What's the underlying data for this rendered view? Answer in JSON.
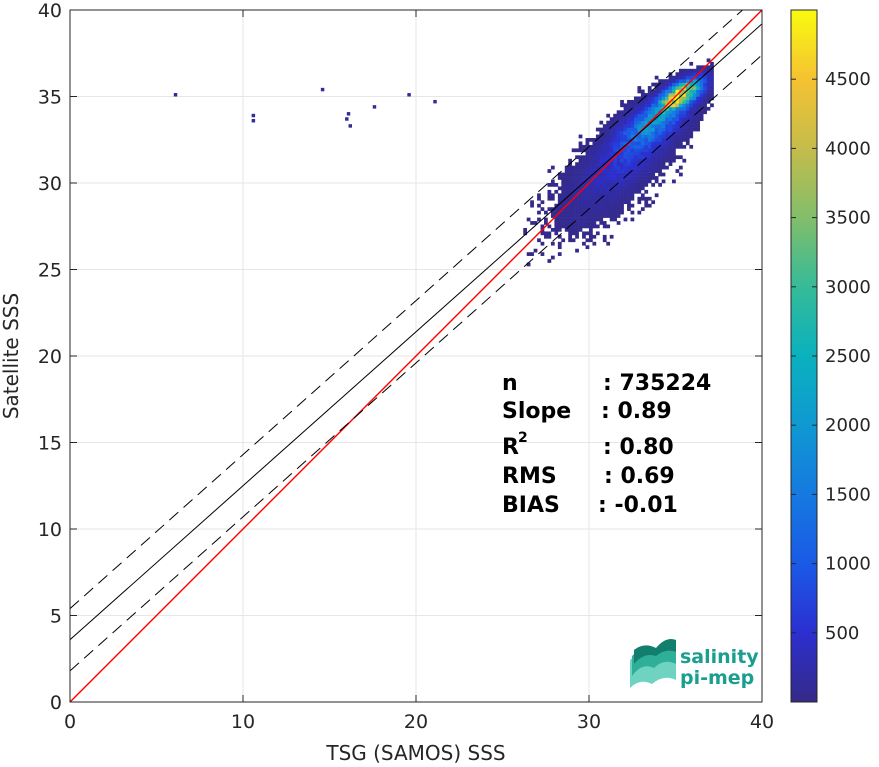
{
  "chart_data": {
    "type": "heatmap",
    "title": "",
    "xlabel": "TSG (SAMOS) SSS",
    "ylabel": "Satellite SSS",
    "xlim": [
      0,
      40
    ],
    "ylim": [
      0,
      40
    ],
    "xticks": [
      "0",
      "10",
      "20",
      "30",
      "40"
    ],
    "yticks": [
      "0",
      "5",
      "10",
      "15",
      "20",
      "25",
      "30",
      "35",
      "40"
    ],
    "grid": true,
    "colorbar": {
      "range": [
        0,
        5000
      ],
      "ticks": [
        "500",
        "1000",
        "1500",
        "2000",
        "2500",
        "3000",
        "3500",
        "4000",
        "4500"
      ],
      "colormap": "parula"
    },
    "lines": [
      {
        "role": "one-to-one",
        "color": "#ff0000",
        "style": "solid",
        "slope": 1.0,
        "intercept": 0.0
      },
      {
        "role": "regression fit",
        "color": "#000000",
        "style": "solid",
        "slope": 0.89,
        "intercept": 3.6
      },
      {
        "role": "upper bound",
        "color": "#000000",
        "style": "dashed",
        "slope": 0.89,
        "intercept": 5.4
      },
      {
        "role": "lower bound",
        "color": "#000000",
        "style": "dashed",
        "slope": 0.89,
        "intercept": 1.8
      }
    ],
    "density_clusters": [
      {
        "x": 35.2,
        "y": 35.0,
        "sx": 0.8,
        "sy": 0.6,
        "peak": 4900
      },
      {
        "x": 33.6,
        "y": 33.4,
        "sx": 1.3,
        "sy": 1.0,
        "peak": 1600
      },
      {
        "x": 32.2,
        "y": 31.5,
        "sx": 1.6,
        "sy": 1.4,
        "peak": 500
      },
      {
        "x": 30.5,
        "y": 29.5,
        "sx": 2.0,
        "sy": 1.8,
        "peak": 120
      }
    ],
    "outliers": [
      {
        "x": 6.0,
        "y": 35.0
      },
      {
        "x": 10.5,
        "y": 33.8
      },
      {
        "x": 10.5,
        "y": 33.5
      },
      {
        "x": 14.5,
        "y": 35.3
      },
      {
        "x": 15.9,
        "y": 33.6
      },
      {
        "x": 16.1,
        "y": 33.2
      },
      {
        "x": 16.0,
        "y": 33.9
      },
      {
        "x": 17.5,
        "y": 34.3
      },
      {
        "x": 19.5,
        "y": 35.0
      },
      {
        "x": 21.0,
        "y": 34.6
      }
    ],
    "stats": {
      "n": {
        "label": "n",
        "value": ": 735224"
      },
      "slope": {
        "label": "Slope",
        "value": ": 0.89"
      },
      "r2": {
        "label": "R",
        "sup": "2",
        "value": ": 0.80"
      },
      "rms": {
        "label": "RMS",
        "value": ": 0.69"
      },
      "bias": {
        "label": "BIAS",
        "value": ": -0.01"
      }
    }
  },
  "logo": {
    "line1": "salinity",
    "line2": "pi-mep",
    "color": "#1a9e8f"
  }
}
